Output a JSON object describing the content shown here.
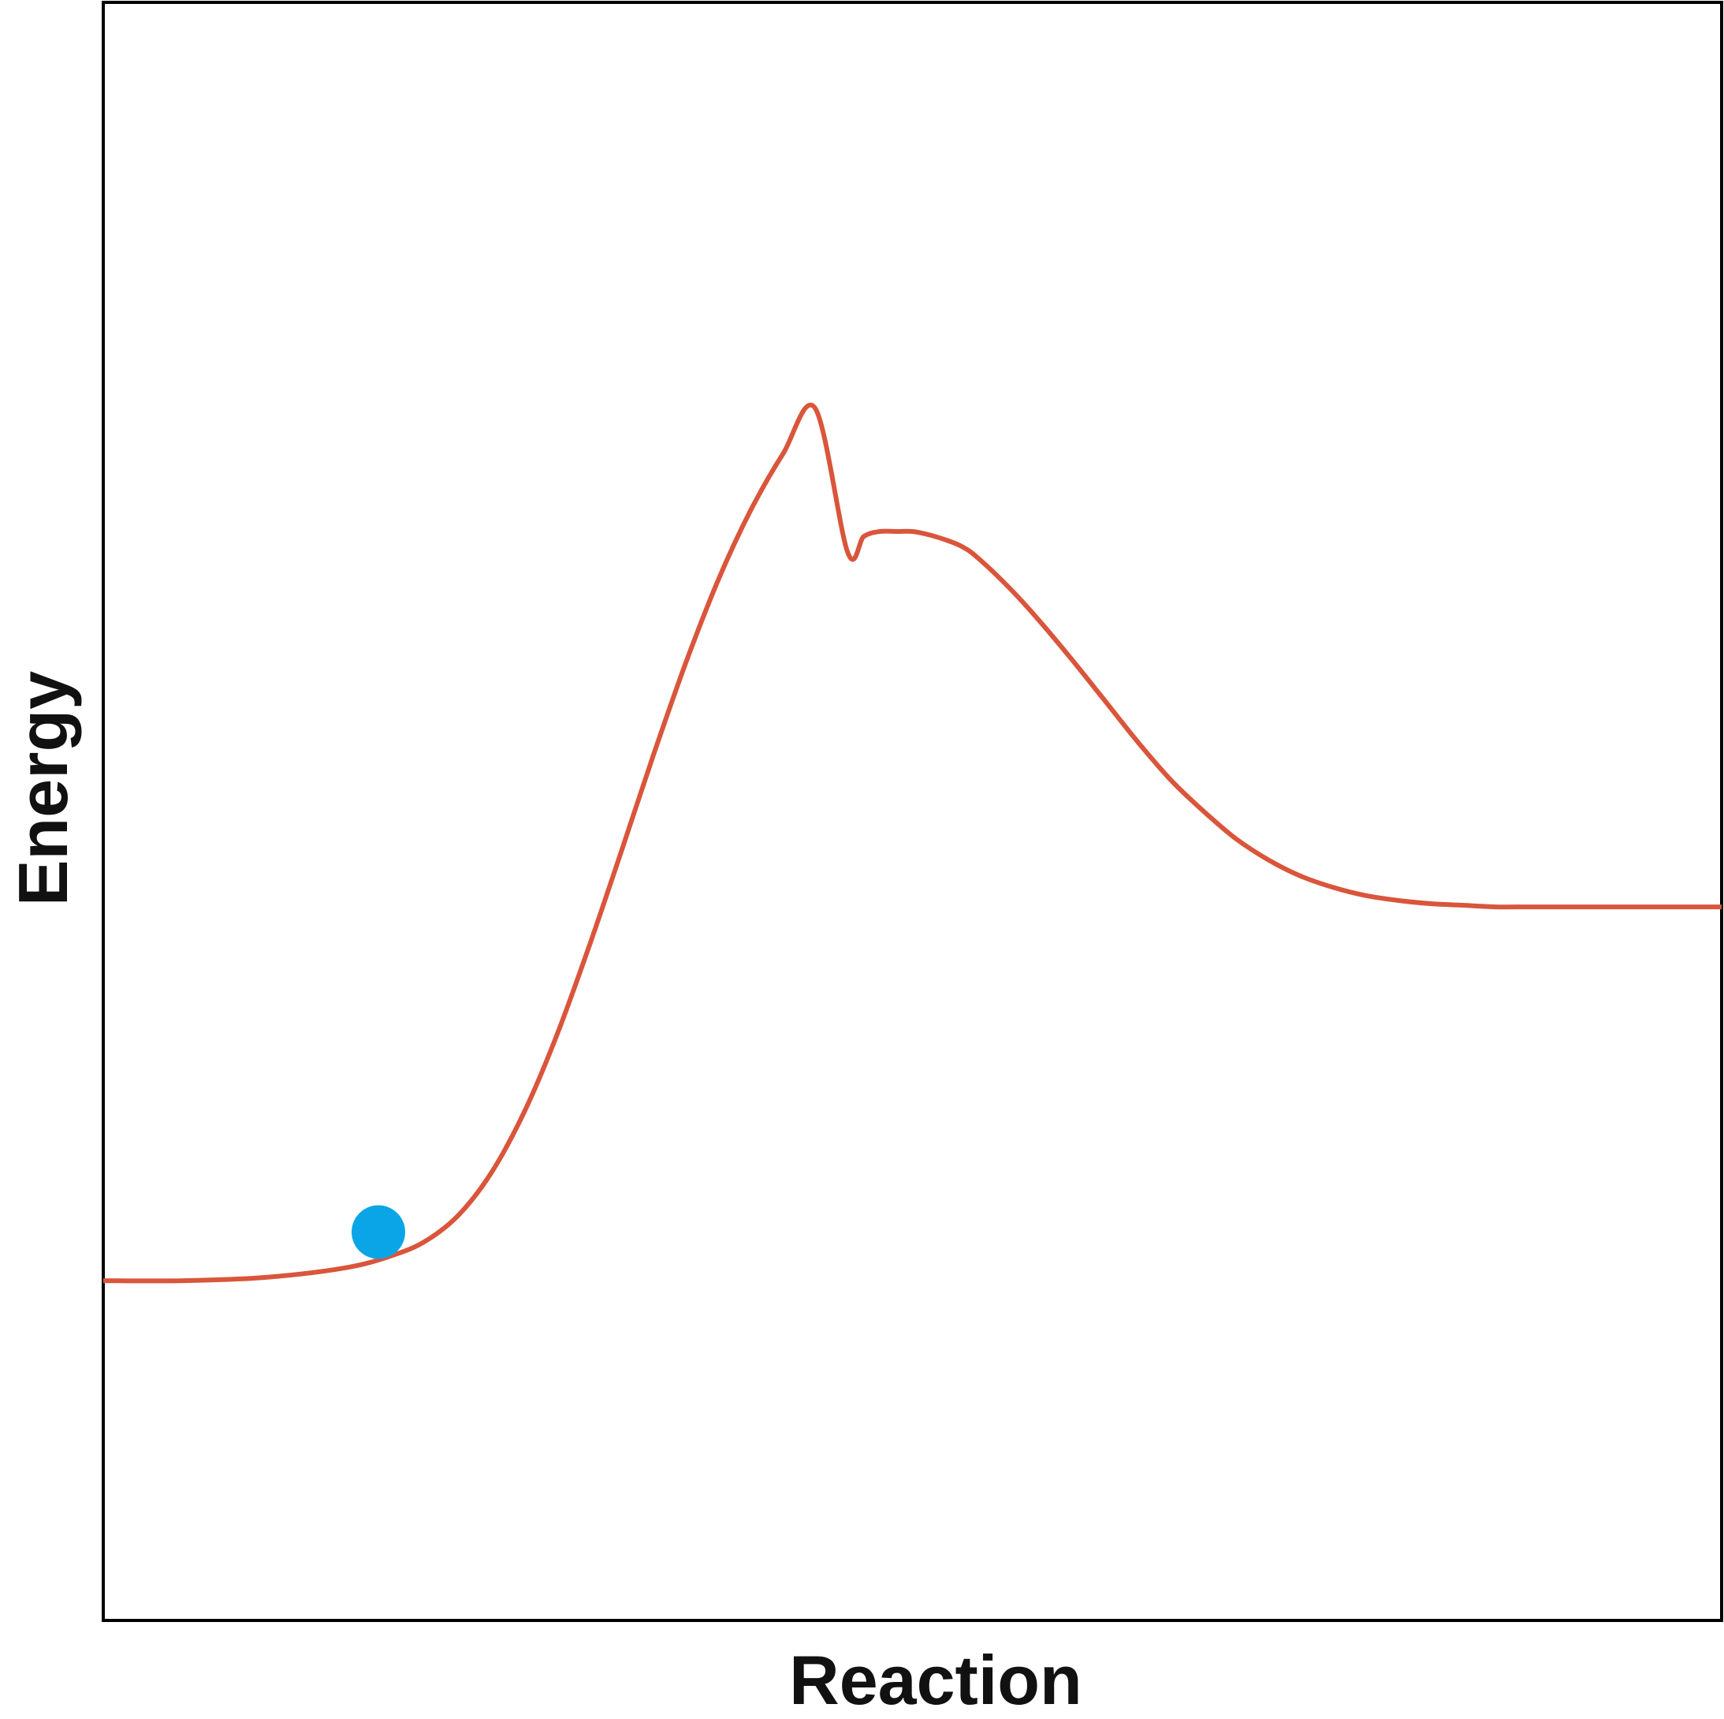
{
  "chart_data": {
    "type": "line",
    "title": "",
    "xlabel": "Reaction",
    "ylabel": "Energy",
    "xlim": [
      0,
      100
    ],
    "ylim": [
      0,
      100
    ],
    "grid": false,
    "series": [
      {
        "color": "#d9553b",
        "x": [
          0,
          5,
          10,
          15,
          18,
          20,
          22,
          24,
          26,
          28,
          30,
          32,
          34,
          36,
          38,
          40,
          42,
          44,
          46,
          47,
          48,
          49,
          50,
          51,
          52,
          53,
          54,
          56,
          58,
          60,
          62,
          64,
          66,
          68,
          70,
          72,
          74,
          76,
          78,
          80,
          82,
          84,
          86,
          88,
          90,
          95,
          100
        ],
        "y": [
          21.0,
          21.0,
          21.2,
          21.8,
          22.6,
          23.5,
          25.1,
          27.7,
          31.4,
          36.1,
          41.6,
          47.5,
          53.5,
          59.2,
          64.3,
          68.6,
          72.1,
          74.9,
          66.0,
          67.0,
          67.3,
          67.3,
          67.3,
          67.1,
          66.8,
          66.4,
          65.7,
          63.8,
          61.6,
          59.2,
          56.7,
          54.2,
          51.9,
          50.0,
          48.3,
          47.0,
          46.0,
          45.3,
          44.8,
          44.5,
          44.3,
          44.2,
          44.1,
          44.1,
          44.1,
          44.1,
          44.1
        ]
      }
    ],
    "markers": [
      {
        "x": 17,
        "y": 24.0,
        "color": "#0aa5e6"
      }
    ],
    "line_color": "#d9553b",
    "marker_color": "#0aa5e6",
    "frame_color": "#000000"
  }
}
